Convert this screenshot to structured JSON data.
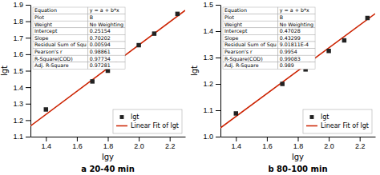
{
  "chart_data": [
    {
      "type": "scatter",
      "title": "a  20-40 min",
      "x_label": "lgy",
      "y_label": "lgt",
      "xlim": [
        1.3,
        2.3
      ],
      "ylim": [
        1.1,
        1.9
      ],
      "xticks": [
        1.4,
        1.6,
        1.8,
        {
          "value": 2.0,
          "label": "2.0"
        },
        2.2
      ],
      "yticks": [
        1.1,
        1.2,
        1.3,
        1.4,
        1.5,
        1.6,
        1.7,
        1.8,
        1.9
      ],
      "legend": "lower right",
      "series": [
        {
          "name": "lgt",
          "type": "scatter",
          "marker": "square",
          "color": "#222222",
          "x": [
            1.4,
            1.7,
            1.8,
            2.0,
            2.1,
            2.25
          ],
          "values": [
            1.265,
            1.435,
            1.5,
            1.655,
            1.725,
            1.845
          ]
        },
        {
          "name": "Linear Fit of lgt",
          "type": "line",
          "line_style": "solid",
          "color": "#cc2200",
          "x": [
            1.3,
            2.3
          ],
          "values": [
            1.164166,
            1.866186
          ]
        }
      ],
      "table": [
        [
          "Equation",
          "y = a + b*x"
        ],
        [
          "Plot",
          "B"
        ],
        [
          "Weight",
          "No Weighting"
        ],
        [
          "Intercept",
          "0.25154"
        ],
        [
          "Slope",
          "0.70202"
        ],
        [
          "Residual Sum of Squ",
          "0.00594"
        ],
        [
          "Pearson's r",
          "0.98861"
        ],
        [
          "R-Square(COD)",
          "0.97734"
        ],
        [
          "Adj. R-Square",
          "0.97281"
        ]
      ]
    },
    {
      "type": "scatter",
      "title": "b  80-100 min",
      "x_label": "lgy",
      "y_label": "lgt",
      "xlim": [
        1.3,
        2.3
      ],
      "ylim": [
        1.0,
        1.5
      ],
      "xticks": [
        1.4,
        1.6,
        1.8,
        {
          "value": 2.0,
          "label": "2.0"
        },
        2.2
      ],
      "yticks": [
        {
          "value": 1.0,
          "label": "1.0"
        },
        1.1,
        1.2,
        1.3,
        1.4,
        1.5
      ],
      "legend": "lower right",
      "series": [
        {
          "name": "lgt",
          "type": "scatter",
          "marker": "square",
          "color": "#222222",
          "x": [
            1.4,
            1.7,
            1.85,
            2.0,
            2.1,
            2.25
          ],
          "values": [
            1.088,
            1.2,
            1.255,
            1.325,
            1.365,
            1.45
          ]
        },
        {
          "name": "Linear Fit of lgt",
          "type": "line",
          "line_style": "solid",
          "color": "#cc2200",
          "x": [
            1.3,
            2.3
          ],
          "values": [
            1.033167,
            1.466157
          ]
        }
      ],
      "table": [
        [
          "Equation",
          "y = a + b*x"
        ],
        [
          "Plot",
          "B"
        ],
        [
          "Weight",
          "No Weighting"
        ],
        [
          "Intercept",
          "0.47028"
        ],
        [
          "Slope",
          "0.43299"
        ],
        [
          "Residual Sum of Squ",
          "9.01811E-4"
        ],
        [
          "Pearson's r",
          "0.9954"
        ],
        [
          "R-Square(COD)",
          "0.99083"
        ],
        [
          "Adj. R-Square",
          "0.989"
        ]
      ]
    }
  ]
}
